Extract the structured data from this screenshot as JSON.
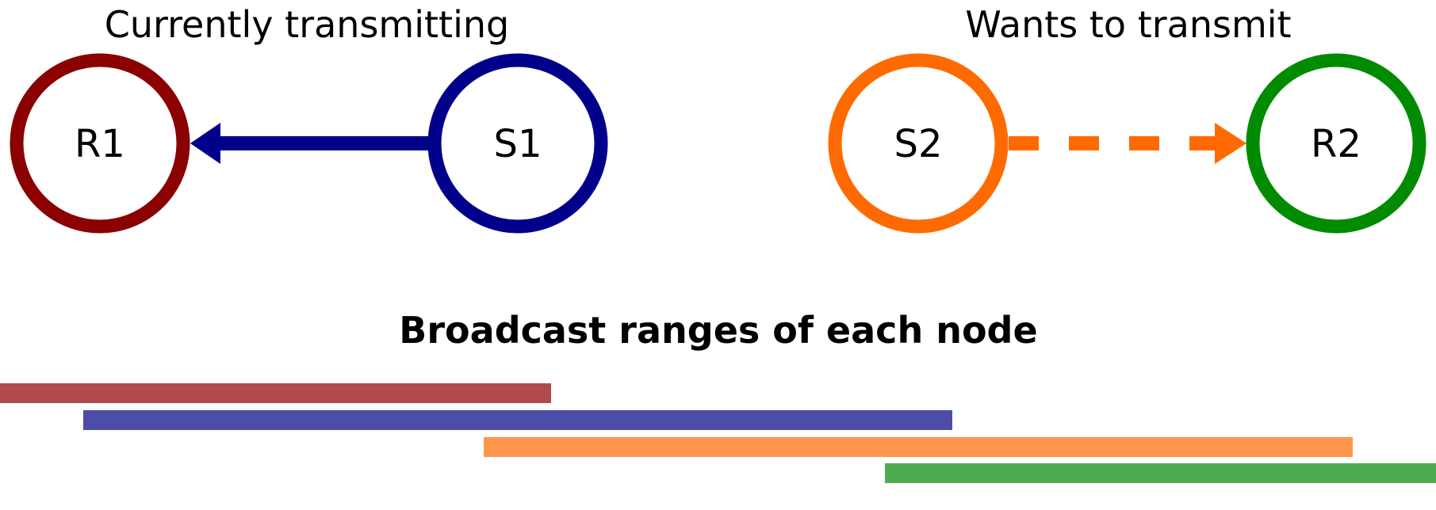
{
  "headings": {
    "left": "Currently transmitting",
    "right": "Wants to transmit"
  },
  "section_title": "Broadcast ranges of each node",
  "nodes": [
    {
      "id": "R1",
      "label": "R1",
      "color": "#8b0000"
    },
    {
      "id": "S1",
      "label": "S1",
      "color": "#00008b"
    },
    {
      "id": "S2",
      "label": "S2",
      "color": "#ff6a00"
    },
    {
      "id": "R2",
      "label": "R2",
      "color": "#008b00"
    }
  ],
  "links": [
    {
      "from": "S1",
      "to": "R1",
      "style": "solid",
      "color": "#00008b",
      "meaning": "currently transmitting"
    },
    {
      "from": "S2",
      "to": "R2",
      "style": "dashed",
      "color": "#ff6a00",
      "meaning": "wants to transmit"
    }
  ],
  "broadcast_ranges": [
    {
      "node": "R1",
      "color": "#b04a4f"
    },
    {
      "node": "S1",
      "color": "#4d4da8"
    },
    {
      "node": "S2",
      "color": "#ff944d"
    },
    {
      "node": "R2",
      "color": "#4dac50"
    }
  ]
}
